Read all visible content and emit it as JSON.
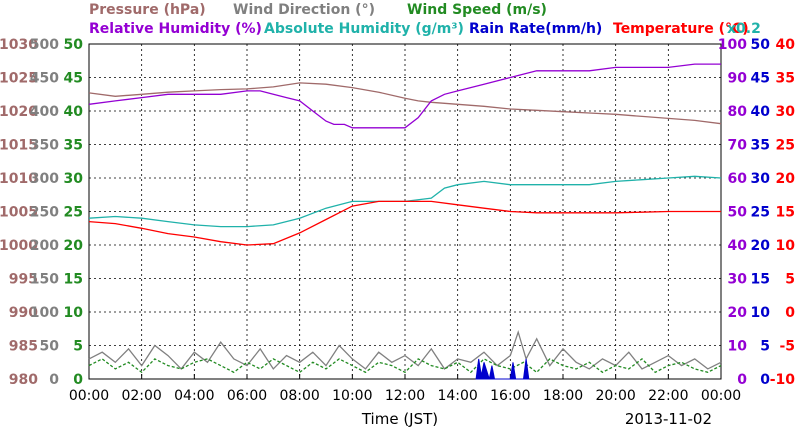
{
  "chart_data": {
    "type": "line",
    "date": "2013-11-02",
    "xlabel": "Time (JST)",
    "x_ticks": [
      "00:00",
      "02:00",
      "04:00",
      "06:00",
      "08:00",
      "10:00",
      "12:00",
      "14:00",
      "16:00",
      "18:00",
      "20:00",
      "22:00",
      "00:00"
    ],
    "xlim": [
      0,
      24
    ],
    "legend_row1": [
      {
        "text": "Pressure (hPa)",
        "color": "#a06a6a"
      },
      {
        "text": "Wind Direction (°)",
        "color": "#808080"
      },
      {
        "text": "Wind Speed (m/s)",
        "color": "#228b22"
      }
    ],
    "legend_row2": [
      {
        "text": "Relative Humidity (%)",
        "color": "#9400d3"
      },
      {
        "text": "Absolute Humidity (g/m³)",
        "color": "#20b2aa"
      },
      {
        "text": "Rain Rate(mm/h)",
        "color": "#0000cd"
      },
      {
        "text": "Temperature (°C)",
        "color": "#ff0000"
      },
      {
        "text": "x0.2",
        "color": "#20b2aa"
      }
    ],
    "axes": {
      "pressure": {
        "ticks": [
          "1030",
          "1025",
          "1020",
          "1015",
          "1010",
          "1005",
          "1000",
          "995",
          "990",
          "985",
          "980"
        ],
        "ylim": [
          980,
          1030
        ],
        "color": "#a06a6a"
      },
      "wind_direction": {
        "ticks": [
          "500",
          "450",
          "400",
          "350",
          "300",
          "250",
          "200",
          "150",
          "100",
          "50",
          "0"
        ],
        "ylim": [
          0,
          500
        ],
        "color": "#808080"
      },
      "wind_speed": {
        "ticks": [
          "50",
          "45",
          "40",
          "35",
          "30",
          "25",
          "20",
          "15",
          "10",
          "5",
          "0"
        ],
        "ylim": [
          0,
          50
        ],
        "color": "#228b22"
      },
      "humidity": {
        "ticks": [
          "100",
          "90",
          "80",
          "70",
          "60",
          "50",
          "40",
          "30",
          "20",
          "10",
          "0"
        ],
        "ylim": [
          0,
          100
        ],
        "color": "#9400d3"
      },
      "rain_rate": {
        "ticks": [
          "50",
          "45",
          "40",
          "35",
          "30",
          "25",
          "20",
          "15",
          "10",
          "5",
          "0"
        ],
        "ylim": [
          0,
          50
        ],
        "color": "#0000cd"
      },
      "temperature": {
        "ticks": [
          "40",
          "35",
          "30",
          "25",
          "20",
          "15",
          "10",
          "5",
          "0",
          "-5",
          "-10"
        ],
        "ylim": [
          -10,
          40
        ],
        "color": "#ff0000"
      }
    },
    "series": [
      {
        "name": "Pressure (hPa)",
        "axis": "pressure",
        "color": "#a06a6a",
        "x": [
          0,
          1,
          2,
          3,
          4,
          5,
          6,
          7,
          8,
          9,
          10,
          11,
          12,
          12.5,
          13,
          14,
          15,
          16,
          17,
          18,
          19,
          20,
          21,
          22,
          23,
          24
        ],
        "y": [
          1022.7,
          1022.2,
          1022.5,
          1022.8,
          1023.0,
          1023.2,
          1023.3,
          1023.6,
          1024.2,
          1024.0,
          1023.5,
          1022.8,
          1021.9,
          1021.5,
          1021.3,
          1021.0,
          1020.7,
          1020.3,
          1020.1,
          1019.9,
          1019.7,
          1019.5,
          1019.2,
          1018.9,
          1018.6,
          1018.1
        ]
      },
      {
        "name": "Relative Humidity (%)",
        "axis": "humidity",
        "color": "#9400d3",
        "x": [
          0,
          1,
          2,
          3,
          4,
          5,
          6,
          6.5,
          7,
          7.5,
          8,
          8.5,
          9,
          9.3,
          9.7,
          10,
          11,
          12,
          12.5,
          13,
          13.5,
          14,
          15,
          16,
          16.5,
          17,
          18,
          19,
          20,
          21,
          22,
          23,
          24
        ],
        "y": [
          82,
          83,
          84,
          85,
          85,
          85,
          86,
          86,
          85,
          84,
          83,
          80,
          77,
          76,
          76,
          75,
          75,
          75,
          78,
          83,
          85,
          86,
          88,
          90,
          91,
          92,
          92,
          92,
          93,
          93,
          93,
          94,
          94
        ]
      },
      {
        "name": "Absolute Humidity",
        "axis": "humidity",
        "color": "#20b2aa",
        "x": [
          0,
          1,
          2,
          3,
          4,
          5,
          6,
          7,
          8,
          9,
          10,
          11,
          12,
          13,
          13.5,
          14,
          15,
          16,
          17,
          18,
          19,
          20,
          21,
          22,
          23,
          24
        ],
        "y": [
          48,
          48.5,
          48,
          47,
          46,
          45.5,
          45.5,
          46,
          48,
          51,
          53,
          53,
          53,
          54,
          57,
          58,
          59,
          58,
          58,
          58,
          58,
          59,
          59.5,
          60,
          60.5,
          60
        ]
      },
      {
        "name": "Temperature (°C)",
        "axis": "temperature",
        "color": "#ff0000",
        "x": [
          0,
          1,
          2,
          3,
          4,
          5,
          6,
          7,
          8,
          9,
          10,
          11,
          12,
          13,
          14,
          15,
          16,
          17,
          18,
          19,
          20,
          21,
          22,
          23,
          24
        ],
        "y": [
          13.5,
          13.2,
          12.5,
          11.7,
          11.2,
          10.5,
          10.0,
          10.2,
          11.8,
          13.8,
          15.8,
          16.5,
          16.5,
          16.5,
          16.0,
          15.5,
          15.0,
          14.8,
          14.8,
          14.8,
          14.8,
          14.9,
          15.0,
          15.0,
          15.0
        ]
      },
      {
        "name": "Wind Direction (°)",
        "axis": "wind_direction",
        "color": "#808080",
        "x": [
          0,
          0.5,
          1,
          1.5,
          2,
          2.5,
          3,
          3.5,
          4,
          4.5,
          5,
          5.5,
          6,
          6.5,
          7,
          7.5,
          8,
          8.5,
          9,
          9.5,
          10,
          10.5,
          11,
          11.5,
          12,
          12.5,
          13,
          13.5,
          14,
          14.5,
          15,
          15.5,
          16,
          16.3,
          16.6,
          17,
          17.5,
          18,
          18.5,
          19,
          19.5,
          20,
          20.5,
          21,
          21.5,
          22,
          22.5,
          23,
          23.5,
          24
        ],
        "y": [
          30,
          40,
          25,
          45,
          20,
          50,
          35,
          15,
          40,
          25,
          55,
          30,
          20,
          45,
          15,
          35,
          25,
          40,
          20,
          50,
          30,
          15,
          40,
          25,
          35,
          20,
          45,
          15,
          30,
          25,
          40,
          20,
          35,
          70,
          30,
          60,
          20,
          45,
          25,
          15,
          30,
          20,
          40,
          15,
          25,
          35,
          20,
          30,
          15,
          25
        ]
      },
      {
        "name": "Wind Speed (m/s)",
        "axis": "wind_speed",
        "color": "#228b22",
        "x": [
          0,
          0.5,
          1,
          1.5,
          2,
          2.5,
          3,
          3.5,
          4,
          4.5,
          5,
          5.5,
          6,
          6.5,
          7,
          7.5,
          8,
          8.5,
          9,
          9.5,
          10,
          10.5,
          11,
          11.5,
          12,
          12.5,
          13,
          13.5,
          14,
          14.5,
          15,
          15.5,
          16,
          16.5,
          17,
          17.5,
          18,
          18.5,
          19,
          19.5,
          20,
          20.5,
          21,
          21.5,
          22,
          22.5,
          23,
          23.5,
          24
        ],
        "y": [
          2,
          3,
          1.5,
          2.5,
          1,
          3,
          2,
          1.5,
          2.5,
          3,
          2,
          1,
          2.5,
          1.5,
          3,
          2,
          1,
          2.5,
          1.5,
          3,
          2,
          1,
          2.5,
          2,
          1,
          3,
          2,
          1.5,
          2.5,
          1,
          3,
          2,
          1.5,
          2.5,
          1,
          3,
          2,
          1.5,
          2.5,
          1,
          2,
          1.5,
          3,
          1,
          2,
          2.5,
          1.5,
          1,
          2
        ]
      },
      {
        "name": "Rain Rate(mm/h)",
        "axis": "rain_rate",
        "color": "#0000cd",
        "x": [
          14.7,
          14.8,
          14.9,
          15.0,
          15.2,
          15.3,
          15.4,
          16.0,
          16.1,
          16.2,
          16.5,
          16.6,
          16.7
        ],
        "y": [
          0,
          3,
          0.5,
          2.5,
          0,
          2,
          0,
          0,
          2.5,
          0,
          0,
          3,
          0
        ]
      }
    ]
  }
}
